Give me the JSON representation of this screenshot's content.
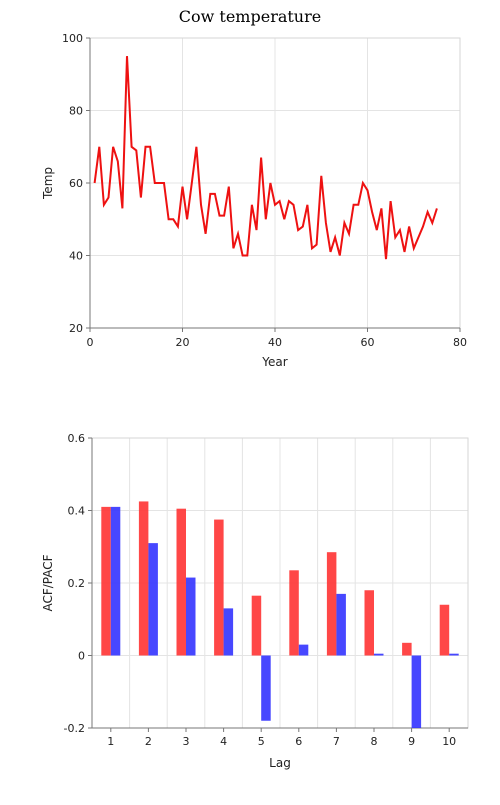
{
  "chart_data": [
    {
      "type": "line",
      "title": "Cow temperature",
      "xlabel": "Year",
      "ylabel": "Temp",
      "xlim": [
        0,
        80
      ],
      "ylim": [
        20,
        100
      ],
      "xticks": [
        "0",
        "20",
        "40",
        "60",
        "80"
      ],
      "yticks": [
        "20",
        "40",
        "60",
        "80",
        "100"
      ],
      "grid": true,
      "colors": {
        "line": "#ee1111"
      },
      "x": [
        1,
        2,
        3,
        4,
        5,
        6,
        7,
        8,
        9,
        10,
        11,
        12,
        13,
        14,
        15,
        16,
        17,
        18,
        19,
        20,
        21,
        22,
        23,
        24,
        25,
        26,
        27,
        28,
        29,
        30,
        31,
        32,
        33,
        34,
        35,
        36,
        37,
        38,
        39,
        40,
        41,
        42,
        43,
        44,
        45,
        46,
        47,
        48,
        49,
        50,
        51,
        52,
        53,
        54,
        55,
        56,
        57,
        58,
        59,
        60,
        61,
        62,
        63,
        64,
        65,
        66,
        67,
        68,
        69,
        70,
        71,
        72,
        73,
        74,
        75
      ],
      "y": [
        60,
        70,
        54,
        56,
        70,
        66,
        53,
        95,
        70,
        69,
        56,
        70,
        70,
        60,
        60,
        60,
        50,
        50,
        48,
        59,
        50,
        60,
        70,
        54,
        46,
        57,
        57,
        51,
        51,
        59,
        42,
        46,
        40,
        40,
        54,
        47,
        67,
        50,
        60,
        54,
        55,
        50,
        55,
        54,
        47,
        48,
        54,
        42,
        43,
        62,
        49,
        41,
        45,
        40,
        49,
        46,
        54,
        54,
        60,
        58,
        52,
        47,
        53,
        39,
        55,
        45,
        47,
        41,
        48,
        42,
        45,
        48,
        52,
        49,
        53
      ]
    },
    {
      "type": "bar",
      "title": "",
      "xlabel": "Lag",
      "ylabel": "ACF/PACF",
      "categories": [
        "1",
        "2",
        "3",
        "4",
        "5",
        "6",
        "7",
        "8",
        "9",
        "10"
      ],
      "ylim": [
        -0.2,
        0.6
      ],
      "yticks": [
        "-0.2",
        "0",
        "0.2",
        "0.4",
        "0.6"
      ],
      "grid": true,
      "series": [
        {
          "values": [
            0.41,
            0.425,
            0.405,
            0.375,
            0.165,
            0.235,
            0.285,
            0.18,
            0.035,
            0.14
          ],
          "color": "#ff3333"
        },
        {
          "values": [
            0.41,
            0.31,
            0.215,
            0.13,
            -0.18,
            0.03,
            0.17,
            0.005,
            -0.2,
            0.005
          ],
          "color": "#3333ff"
        }
      ]
    }
  ]
}
